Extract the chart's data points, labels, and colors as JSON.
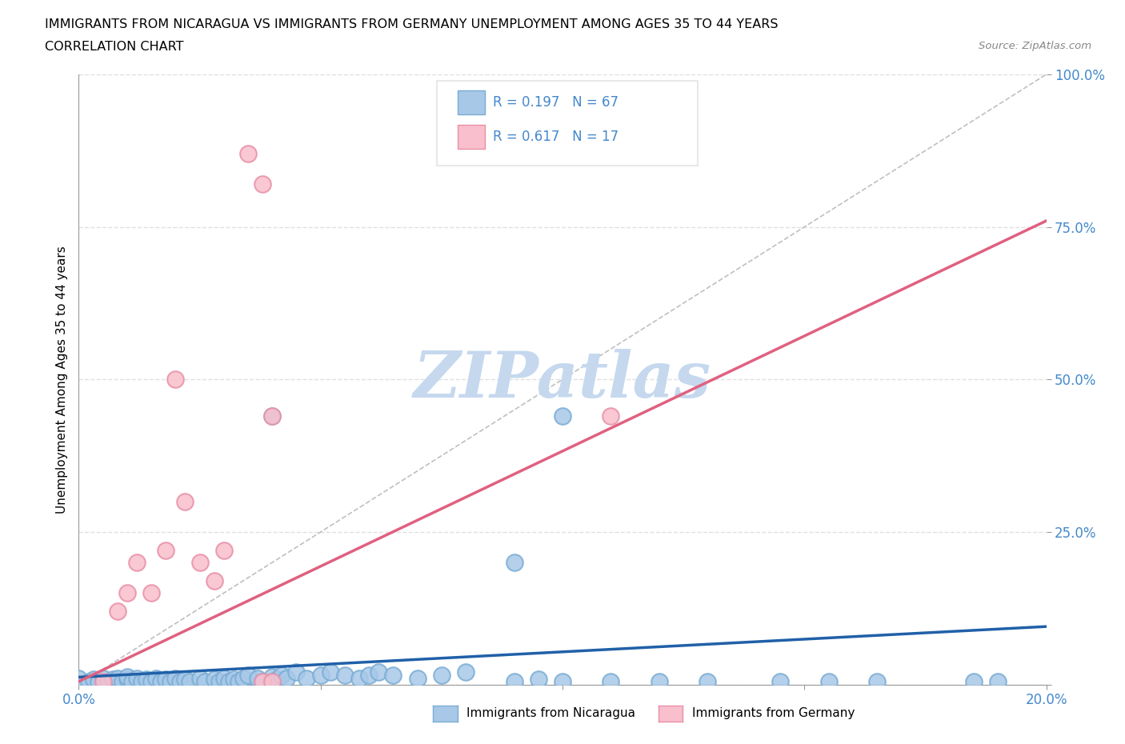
{
  "title_line1": "IMMIGRANTS FROM NICARAGUA VS IMMIGRANTS FROM GERMANY UNEMPLOYMENT AMONG AGES 35 TO 44 YEARS",
  "title_line2": "CORRELATION CHART",
  "source_text": "Source: ZipAtlas.com",
  "ylabel": "Unemployment Among Ages 35 to 44 years",
  "xlim": [
    0.0,
    0.2
  ],
  "ylim": [
    0.0,
    1.0
  ],
  "nicaragua_color": "#a8c8e8",
  "nicaragua_edge": "#7aadd4",
  "germany_color": "#f9bfcc",
  "germany_edge": "#e890a8",
  "nicaragua_R": 0.197,
  "nicaragua_N": 67,
  "germany_R": 0.617,
  "germany_N": 17,
  "nicaragua_label": "Immigrants from Nicaragua",
  "germany_label": "Immigrants from Germany",
  "watermark": "ZIPatlas",
  "watermark_color": "#c5d8ee",
  "blue_line_color": "#2060a8",
  "pink_line_color": "#e06080",
  "diagonal_color": "#b0b0b0",
  "grid_color": "#e0e0e0",
  "tick_color": "#4488cc",
  "legend_box_color": "#e8e8e8",
  "nic_line_x0": 0.0,
  "nic_line_y0": 0.012,
  "nic_line_x1": 0.2,
  "nic_line_y1": 0.095,
  "ger_line_x0": 0.0,
  "ger_line_y0": 0.005,
  "ger_line_x1": 0.2,
  "ger_line_y1": 0.76,
  "nicaragua_x": [
    0.0,
    0.002,
    0.003,
    0.004,
    0.005,
    0.006,
    0.007,
    0.008,
    0.008,
    0.009,
    0.01,
    0.01,
    0.011,
    0.012,
    0.013,
    0.014,
    0.015,
    0.016,
    0.017,
    0.018,
    0.019,
    0.02,
    0.021,
    0.022,
    0.023,
    0.025,
    0.026,
    0.028,
    0.029,
    0.03,
    0.031,
    0.032,
    0.033,
    0.034,
    0.035,
    0.037,
    0.038,
    0.04,
    0.041,
    0.042,
    0.043,
    0.045,
    0.047,
    0.05,
    0.052,
    0.055,
    0.058,
    0.06,
    0.062,
    0.065,
    0.07,
    0.075,
    0.08,
    0.09,
    0.095,
    0.1,
    0.11,
    0.12,
    0.13,
    0.145,
    0.155,
    0.165,
    0.185,
    0.19,
    0.09,
    0.1,
    0.04
  ],
  "nicaragua_y": [
    0.01,
    0.005,
    0.008,
    0.005,
    0.01,
    0.005,
    0.008,
    0.005,
    0.01,
    0.005,
    0.008,
    0.012,
    0.005,
    0.01,
    0.005,
    0.008,
    0.005,
    0.01,
    0.005,
    0.008,
    0.005,
    0.01,
    0.005,
    0.008,
    0.005,
    0.01,
    0.005,
    0.008,
    0.005,
    0.01,
    0.005,
    0.008,
    0.005,
    0.01,
    0.015,
    0.01,
    0.005,
    0.012,
    0.008,
    0.015,
    0.01,
    0.02,
    0.01,
    0.015,
    0.02,
    0.015,
    0.01,
    0.015,
    0.02,
    0.015,
    0.01,
    0.015,
    0.02,
    0.005,
    0.008,
    0.005,
    0.005,
    0.005,
    0.005,
    0.005,
    0.005,
    0.005,
    0.005,
    0.005,
    0.2,
    0.44,
    0.44
  ],
  "germany_x": [
    0.005,
    0.008,
    0.01,
    0.012,
    0.015,
    0.018,
    0.02,
    0.022,
    0.025,
    0.028,
    0.03,
    0.035,
    0.038,
    0.04,
    0.038,
    0.04,
    0.11
  ],
  "germany_y": [
    0.005,
    0.12,
    0.15,
    0.2,
    0.15,
    0.22,
    0.5,
    0.3,
    0.2,
    0.17,
    0.22,
    0.87,
    0.82,
    0.44,
    0.005,
    0.005,
    0.44
  ]
}
